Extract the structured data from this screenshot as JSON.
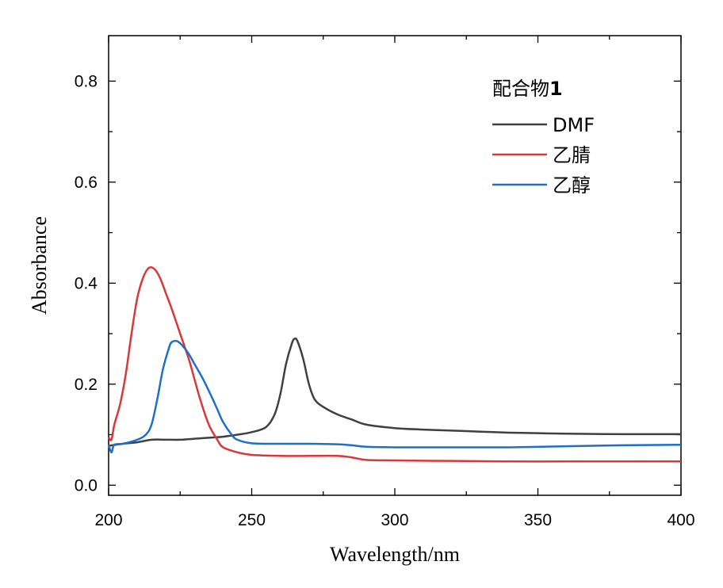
{
  "chart_data": {
    "type": "line",
    "title": "",
    "xlabel": "Wavelength/nm",
    "ylabel": "Absorbance",
    "xlim": [
      200,
      400
    ],
    "ylim": [
      -0.02,
      0.89
    ],
    "xticks": [
      200,
      250,
      300,
      350,
      400
    ],
    "xtick_labels": [
      "200",
      "250",
      "300",
      "350",
      "400"
    ],
    "yticks": [
      0.0,
      0.2,
      0.4,
      0.6,
      0.8
    ],
    "ytick_labels": [
      "0.0",
      "0.2",
      "0.4",
      "0.6",
      "0.8"
    ],
    "legend": {
      "title_main": "配合物",
      "title_bold": "1",
      "position": "top-right"
    },
    "series": [
      {
        "name": "DMF",
        "color": "#404040",
        "points": [
          [
            200,
            0.078
          ],
          [
            205,
            0.082
          ],
          [
            210,
            0.085
          ],
          [
            215,
            0.09
          ],
          [
            220,
            0.09
          ],
          [
            225,
            0.09
          ],
          [
            230,
            0.092
          ],
          [
            235,
            0.094
          ],
          [
            240,
            0.096
          ],
          [
            245,
            0.1
          ],
          [
            250,
            0.105
          ],
          [
            255,
            0.115
          ],
          [
            258,
            0.14
          ],
          [
            260,
            0.18
          ],
          [
            262,
            0.24
          ],
          [
            264,
            0.28
          ],
          [
            265,
            0.29
          ],
          [
            266,
            0.285
          ],
          [
            268,
            0.25
          ],
          [
            270,
            0.2
          ],
          [
            272,
            0.17
          ],
          [
            275,
            0.155
          ],
          [
            280,
            0.14
          ],
          [
            285,
            0.13
          ],
          [
            290,
            0.12
          ],
          [
            300,
            0.113
          ],
          [
            310,
            0.11
          ],
          [
            320,
            0.108
          ],
          [
            330,
            0.106
          ],
          [
            340,
            0.104
          ],
          [
            350,
            0.103
          ],
          [
            360,
            0.102
          ],
          [
            380,
            0.101
          ],
          [
            400,
            0.101
          ]
        ]
      },
      {
        "name": "乙腈",
        "color": "#d8383a",
        "points": [
          [
            200,
            0.095
          ],
          [
            201,
            0.09
          ],
          [
            202,
            0.12
          ],
          [
            204,
            0.16
          ],
          [
            206,
            0.22
          ],
          [
            208,
            0.3
          ],
          [
            210,
            0.37
          ],
          [
            212,
            0.41
          ],
          [
            214,
            0.43
          ],
          [
            216,
            0.428
          ],
          [
            218,
            0.41
          ],
          [
            220,
            0.38
          ],
          [
            222,
            0.35
          ],
          [
            225,
            0.3
          ],
          [
            228,
            0.25
          ],
          [
            230,
            0.21
          ],
          [
            232,
            0.17
          ],
          [
            235,
            0.12
          ],
          [
            238,
            0.09
          ],
          [
            240,
            0.075
          ],
          [
            245,
            0.065
          ],
          [
            250,
            0.06
          ],
          [
            260,
            0.058
          ],
          [
            270,
            0.058
          ],
          [
            280,
            0.058
          ],
          [
            285,
            0.055
          ],
          [
            290,
            0.05
          ],
          [
            300,
            0.049
          ],
          [
            320,
            0.048
          ],
          [
            340,
            0.047
          ],
          [
            360,
            0.047
          ],
          [
            380,
            0.047
          ],
          [
            400,
            0.047
          ]
        ]
      },
      {
        "name": "乙醇",
        "color": "#1f6fc8",
        "points": [
          [
            200,
            0.08
          ],
          [
            201,
            0.065
          ],
          [
            202,
            0.08
          ],
          [
            205,
            0.082
          ],
          [
            210,
            0.09
          ],
          [
            213,
            0.1
          ],
          [
            215,
            0.12
          ],
          [
            217,
            0.17
          ],
          [
            219,
            0.23
          ],
          [
            221,
            0.27
          ],
          [
            222,
            0.283
          ],
          [
            224,
            0.285
          ],
          [
            226,
            0.275
          ],
          [
            228,
            0.26
          ],
          [
            230,
            0.24
          ],
          [
            233,
            0.21
          ],
          [
            236,
            0.175
          ],
          [
            238,
            0.15
          ],
          [
            240,
            0.125
          ],
          [
            243,
            0.1
          ],
          [
            245,
            0.09
          ],
          [
            250,
            0.083
          ],
          [
            260,
            0.082
          ],
          [
            270,
            0.082
          ],
          [
            280,
            0.081
          ],
          [
            285,
            0.079
          ],
          [
            290,
            0.076
          ],
          [
            300,
            0.075
          ],
          [
            320,
            0.075
          ],
          [
            340,
            0.075
          ],
          [
            360,
            0.077
          ],
          [
            380,
            0.079
          ],
          [
            400,
            0.08
          ]
        ]
      }
    ]
  }
}
